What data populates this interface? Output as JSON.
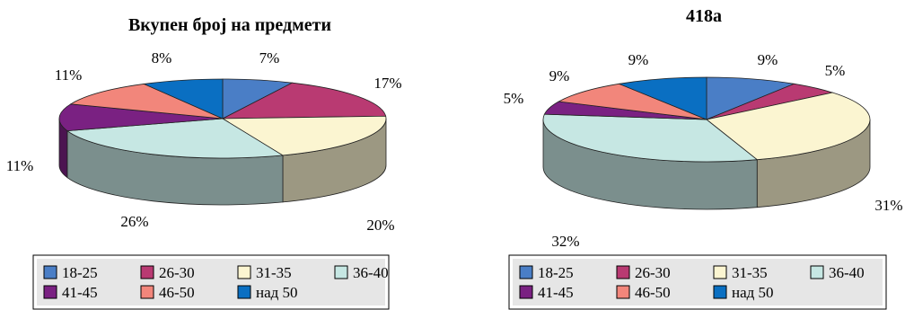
{
  "legend_labels": [
    "18-25",
    "26-30",
    "31-35",
    "36-40",
    "41-45",
    "46-50",
    "над 50"
  ],
  "colors": {
    "18-25": "#4a7ec6",
    "26-30": "#b93a72",
    "31-35": "#fbf5d1",
    "36-40": "#c6e7e3",
    "41-45": "#7a2182",
    "46-50": "#f2867b",
    "над 50": "#0a6fc2"
  },
  "chart_data": [
    {
      "type": "pie",
      "style": "3d-exploded-none",
      "title": "Вкупен број на предмети",
      "categories": [
        "18-25",
        "26-30",
        "31-35",
        "36-40",
        "41-45",
        "46-50",
        "над 50"
      ],
      "values": [
        7,
        17,
        20,
        26,
        11,
        11,
        8
      ],
      "labels": [
        "7%",
        "17%",
        "20%",
        "26%",
        "11%",
        "11%",
        "8%"
      ],
      "legend": "bottom"
    },
    {
      "type": "pie",
      "style": "3d-exploded-none",
      "title": "418а",
      "categories": [
        "18-25",
        "26-30",
        "31-35",
        "36-40",
        "41-45",
        "46-50",
        "над 50"
      ],
      "values": [
        9,
        5,
        31,
        32,
        5,
        9,
        9
      ],
      "labels": [
        "9%",
        "5%",
        "31%",
        "32%",
        "5%",
        "9%",
        "9%"
      ],
      "legend": "bottom"
    }
  ]
}
